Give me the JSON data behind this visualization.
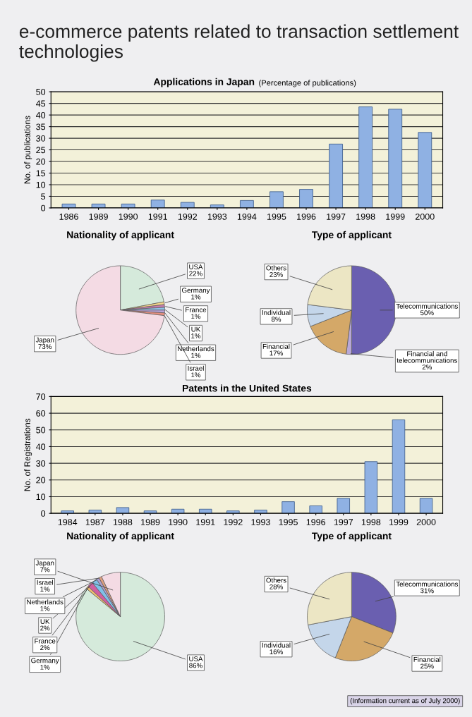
{
  "chart_data": [
    {
      "type": "other",
      "title": "e-commerce patents related to transaction settlement technologies"
    },
    {
      "type": "bar",
      "title": "Applications in Japan",
      "subtitle": "(Percentage of publications)",
      "ylabel": "No. of publications",
      "categories": [
        "1986",
        "1989",
        "1990",
        "1991",
        "1992",
        "1993",
        "1994",
        "1995",
        "1996",
        "1997",
        "1998",
        "1999",
        "2000"
      ],
      "values": [
        1.7,
        1.7,
        1.7,
        3.4,
        2.4,
        1.3,
        3.2,
        7.0,
        8.0,
        27.5,
        43.5,
        42.5,
        32.5
      ],
      "color": "#8fb1e3",
      "ylim": [
        0,
        50
      ],
      "yticks": [
        0,
        5,
        10,
        15,
        20,
        25,
        30,
        35,
        40,
        45,
        50
      ],
      "grid": "y",
      "legend": false
    },
    {
      "type": "pie",
      "title": "Nationality of applicant",
      "categories": [
        "USA",
        "Germany",
        "France",
        "UK",
        "Netherlands",
        "Israel",
        "Japan"
      ],
      "values": [
        22,
        1,
        1,
        1,
        1,
        1,
        73
      ],
      "value_labels": [
        "22%",
        "1%",
        "1%",
        "1%",
        "1%",
        "1%",
        "73%"
      ],
      "colors": [
        "#d5eadb",
        "#f2d48a",
        "#c77fb0",
        "#8fc3e8",
        "#b9a3d8",
        "#e89080",
        "#f4dbe4"
      ]
    },
    {
      "type": "pie",
      "title": "Type of applicant",
      "categories": [
        "Telecommunications",
        "Financial and\ntelecommunications",
        "Financial",
        "Individual",
        "Others"
      ],
      "values": [
        50,
        2,
        17,
        8,
        23
      ],
      "value_labels": [
        "50%",
        "2%",
        "17%",
        "8%",
        "23%"
      ],
      "colors": [
        "#6a5fb0",
        "#b8a8d8",
        "#d4a868",
        "#c4d6ea",
        "#ece6c4"
      ]
    },
    {
      "type": "bar",
      "title": "Patents in the United States",
      "ylabel": "No. of Registrations",
      "categories": [
        "1984",
        "1987",
        "1988",
        "1989",
        "1990",
        "1991",
        "1992",
        "1993",
        "1995",
        "1996",
        "1997",
        "1998",
        "1999",
        "2000"
      ],
      "values": [
        1.5,
        2,
        3.5,
        1.5,
        2.5,
        2.5,
        1.5,
        2,
        7,
        4.5,
        9,
        31,
        56,
        9
      ],
      "color": "#8fb1e3",
      "ylim": [
        0,
        70
      ],
      "yticks": [
        0,
        10,
        20,
        30,
        40,
        50,
        60,
        70
      ],
      "grid": "y",
      "legend": false
    },
    {
      "type": "pie",
      "title": "Nationality of applicant",
      "categories": [
        "USA",
        "Germany",
        "France",
        "UK",
        "Netherlands",
        "Israel",
        "Japan"
      ],
      "values": [
        86,
        1,
        2,
        2,
        1,
        1,
        7
      ],
      "value_labels": [
        "86%",
        "1%",
        "2%",
        "2%",
        "1%",
        "1%",
        "7%"
      ],
      "colors": [
        "#d5eadb",
        "#f0c070",
        "#d060a0",
        "#80c0e8",
        "#b0a0d0",
        "#e0a080",
        "#f4dbe4"
      ]
    },
    {
      "type": "pie",
      "title": "Type of applicant",
      "categories": [
        "Telecommunications",
        "Financial",
        "Individual",
        "Others"
      ],
      "values": [
        31,
        25,
        16,
        28
      ],
      "value_labels": [
        "31%",
        "25%",
        "16%",
        "28%"
      ],
      "colors": [
        "#6a5fb0",
        "#d4a868",
        "#c4d6ea",
        "#ece6c4"
      ],
      "annotations": [
        "(Information current as of July 2000)"
      ]
    }
  ]
}
